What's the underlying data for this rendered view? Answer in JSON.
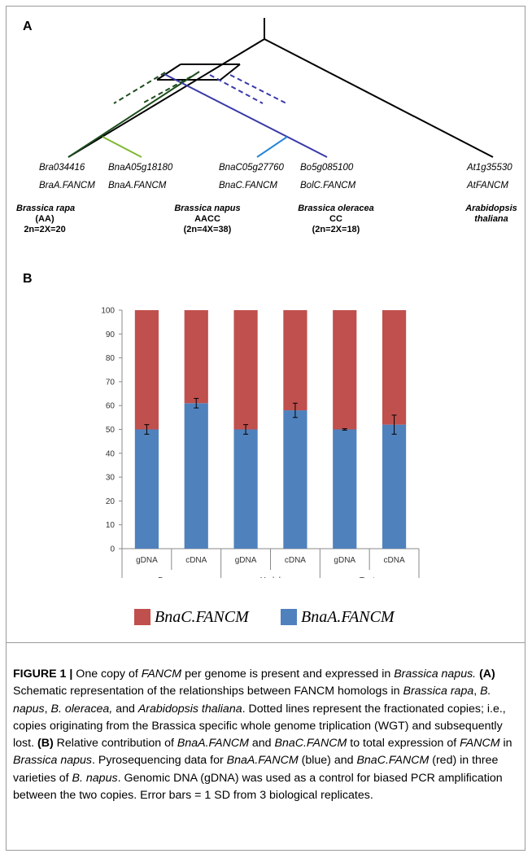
{
  "panel_a": {
    "label": "A",
    "tips": [
      {
        "gene": "Bra034416",
        "name": "BraA.FANCM"
      },
      {
        "gene": "BnaA05g18180",
        "name": "BnaA.FANCM"
      },
      {
        "gene": "BnaC05g27760",
        "name": "BnaC.FANCM"
      },
      {
        "gene": "Bo5g085100",
        "name": "BolC.FANCM"
      },
      {
        "gene": "At1g35530",
        "name": "AtFANCM"
      }
    ],
    "species": [
      {
        "name": "Brassica rapa",
        "genome": "(AA)",
        "ploidy": "2n=2X=20"
      },
      {
        "name": "Brassica napus",
        "genome": "AACC",
        "ploidy": "(2n=4X=38)"
      },
      {
        "name": "Brassica oleracea",
        "genome": "CC",
        "ploidy": "(2n=2X=18)"
      },
      {
        "name": "Arabidopsis",
        "genome": "thaliana",
        "ploidy": ""
      }
    ],
    "colors": {
      "a_genome": "#1e4d1e",
      "a_napus": "#7fb832",
      "c_genome": "#3a3aa8",
      "c_napus": "#2a86d6",
      "root": "#000000"
    }
  },
  "panel_b": {
    "label": "B",
    "legend": [
      {
        "label": "BnaC.FANCM",
        "color": "#c0504d"
      },
      {
        "label": "BnaA.FANCM",
        "color": "#4f81bd"
      }
    ]
  },
  "chart_data": {
    "type": "bar",
    "stacked": true,
    "categories": [
      "gDNA",
      "cDNA",
      "gDNA",
      "cDNA",
      "gDNA",
      "cDNA"
    ],
    "groups": [
      {
        "name": "Darmor",
        "span": 2
      },
      {
        "name": "Yudal",
        "span": 2
      },
      {
        "name": "Tanto",
        "span": 2
      }
    ],
    "series": [
      {
        "name": "BnaA.FANCM",
        "color": "#4f81bd",
        "values": [
          50,
          61,
          50,
          58,
          50,
          52
        ],
        "error": [
          2,
          2,
          2,
          3,
          0.3,
          4
        ]
      },
      {
        "name": "BnaC.FANCM",
        "color": "#c0504d",
        "values": [
          50,
          39,
          50,
          42,
          50,
          48
        ]
      }
    ],
    "ylim": [
      0,
      100
    ],
    "yticks": [
      0,
      10,
      20,
      30,
      40,
      50,
      60,
      70,
      80,
      90,
      100
    ],
    "grid": false,
    "legend_position": "bottom"
  },
  "caption": {
    "fig_label": "FIGURE 1 |",
    "t1": " One copy of ",
    "i1": "FANCM",
    "t2": " per genome is present and expressed in ",
    "i2": "Brassica napus.",
    "b_a": " (A)",
    "t3": " Schematic representation of the relationships between FANCM homologs in ",
    "i3": "Brassica rapa",
    "t4": ", ",
    "i4": "B. napus",
    "t5": ", ",
    "i5": "B. oleracea,",
    "t6": " and ",
    "i6": "Arabidopsis thaliana",
    "t7": ". Dotted lines represent the fractionated copies; i.e., copies originating from the Brassica specific whole genome triplication (WGT) and subsequently lost. ",
    "b_b": "(B)",
    "t8": " Relative contribution of ",
    "i7": "BnaA.FANCM",
    "t9": " and ",
    "i8": "BnaC.FANCM",
    "t10": " to total expression of ",
    "i9": "FANCM",
    "t11": " in ",
    "i10": "Brassica napus",
    "t12": ". Pyrosequencing data for ",
    "i11": "BnaA.FANCM",
    "t13": " (blue) and ",
    "i12": "BnaC.FANCM",
    "t14": " (red) in three varieties of ",
    "i13": "B. napus",
    "t15": ". Genomic DNA (gDNA) was used as a control for biased PCR amplification between the two copies. Error bars = 1 SD from 3 biological replicates."
  }
}
